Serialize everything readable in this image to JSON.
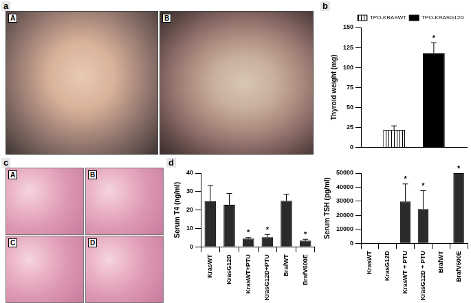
{
  "panels": [
    {
      "label": "a",
      "images": [
        "A",
        "B"
      ]
    },
    {
      "label": "b"
    },
    {
      "label": "c",
      "images": [
        "A",
        "B",
        "C",
        "D"
      ]
    },
    {
      "label": "d"
    }
  ],
  "chart_data": [
    {
      "type": "bar",
      "y_label": "Thyroid weight (mg)",
      "categories": [
        null
      ],
      "series": [
        {
          "name": "TPO-KRASWT",
          "color": "#ffffff",
          "values": [
            22
          ],
          "errors": [
            5
          ]
        },
        {
          "name": "TPO-KRASG12D",
          "color": "#000000",
          "values": [
            118
          ],
          "errors": [
            13
          ]
        }
      ],
      "annotations": [
        {
          "series": "TPO-KRASG12D",
          "text": "*"
        }
      ],
      "ylim": [
        0,
        150
      ],
      "yticks": [
        0,
        25,
        50,
        75,
        100,
        125,
        150
      ],
      "grid": false,
      "legend": "upper right",
      "tick_labels": "y"
    },
    {
      "type": "bar",
      "y_label": "Serum T4 (ng/ml)",
      "categories": [
        "KrasWT",
        "KrasG12D",
        "KrasWT+PTU",
        "KrasG12D+PTU",
        "BrafWT",
        "BrafV600E"
      ],
      "values": [
        24.8,
        22.8,
        4.5,
        5.2,
        25,
        3.3
      ],
      "errors": [
        8.5,
        6.2,
        0.5,
        1.5,
        3.5,
        0.8
      ],
      "color": "#2b2b2b",
      "annotations": [
        {
          "category": "KrasWT+PTU",
          "text": "*"
        },
        {
          "category": "KrasG12D+PTU",
          "text": "*"
        },
        {
          "category": "BrafV600E",
          "text": "*"
        }
      ],
      "ylim": [
        0,
        40
      ],
      "yticks": [
        0,
        10,
        20,
        30,
        40
      ],
      "grid": false
    },
    {
      "type": "bar",
      "y_label": "Serum TSH (pg/ml)",
      "categories": [
        "KrasWT",
        "KrasG12D",
        "KrasWT + PTU",
        "KrasG12D + PTU",
        "BrafWT",
        "BrafV600E"
      ],
      "values": [
        300,
        300,
        29800,
        24500,
        300,
        50000
      ],
      "errors": [
        0,
        0,
        12500,
        13000,
        0,
        0
      ],
      "color": "#2b2b2b",
      "annotations": [
        {
          "category": "KrasWT + PTU",
          "text": "*"
        },
        {
          "category": "KrasG12D + PTU",
          "text": "*"
        },
        {
          "category": "BrafV600E",
          "text": "*"
        }
      ],
      "ylim": [
        0,
        50000
      ],
      "yticks": [
        0,
        10000,
        20000,
        30000,
        40000,
        50000
      ],
      "grid": false
    }
  ]
}
